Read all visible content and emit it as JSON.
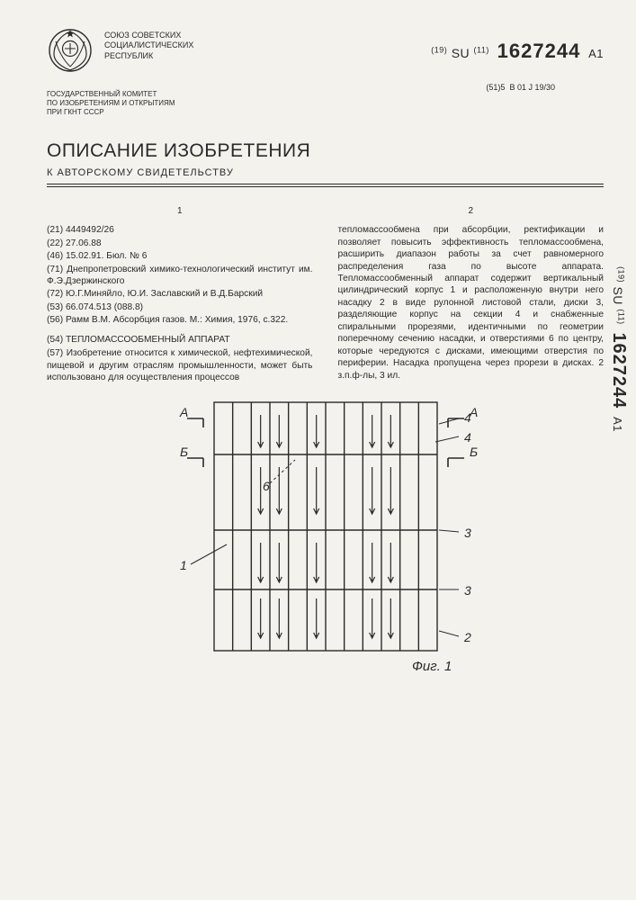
{
  "issuer": "СОЮЗ СОВЕТСКИХ\nСОЦИАЛИСТИЧЕСКИХ\nРЕСПУБЛИК",
  "pub": {
    "cc_prefix": "(19)",
    "cc": "SU",
    "num_prefix": "(11)",
    "num": "1627244",
    "kind": "A1"
  },
  "ipc": {
    "prefix": "(51)5",
    "code": "B 01 J 19/30"
  },
  "committee": "ГОСУДАРСТВЕННЫЙ КОМИТЕТ\nПО ИЗОБРЕТЕНИЯМ И ОТКРЫТИЯМ\nПРИ ГКНТ СССР",
  "title": "ОПИСАНИЕ ИЗОБРЕТЕНИЯ",
  "subtitle": "К АВТОРСКОМУ СВИДЕТЕЛЬСТВУ",
  "col_left_num": "1",
  "col_right_num": "2",
  "biblio": {
    "f21": "(21) 4449492/26",
    "f22": "(22) 27.06.88",
    "f46": "(46) 15.02.91. Бюл. № 6",
    "f71": "(71) Днепропетровский химико-технологический институт им. Ф.Э.Дзержинского",
    "f72": "(72) Ю.Г.Миняйло, Ю.И. Заславский и В.Д.Барский",
    "f53": "(53) 66.074.513 (088.8)",
    "f56": "(56) Рамм В.М. Абсорбция газов. М.: Химия, 1976, с.322."
  },
  "inv_title": "(54) ТЕПЛОМАССООБМЕННЫЙ АППАРАТ",
  "abstract_lead": "(57) Изобретение относится к химической, нефтехимической, пищевой и другим отраслям промышленности, может быть использовано для осуществления процессов",
  "abstract_cont": "тепломассообмена при абсорбции, ректификации и позволяет повысить эффективность тепломассообмена, расширить диапазон работы за счет равномерного распределения газа по высоте аппарата. Тепломассообменный аппарат содержит вертикальный цилиндрический корпус 1 и расположенную внутри него насадку 2 в виде рулонной листовой стали, диски 3, разделяющие корпус на секции 4 и снабженные спиральными прорезями, идентичными по геометрии поперечному сечению насадки, и отверстиями 6 по центру, которые чередуются с дисками, имеющими отверстия по периферии. Насадка пропущена через прорези в дисках. 2 з.п.ф-лы, 3 ил.",
  "figure": {
    "caption": "Фиг. 1",
    "labels": {
      "A": "А",
      "B": "Б"
    },
    "callouts": [
      "1",
      "2",
      "3",
      "3",
      "4",
      "4",
      "6"
    ],
    "strip_count": 12,
    "disc_y": [
      64,
      148,
      214
    ],
    "colors": {
      "stroke": "#2a2a2a",
      "bg": "#f4f2ed"
    }
  }
}
